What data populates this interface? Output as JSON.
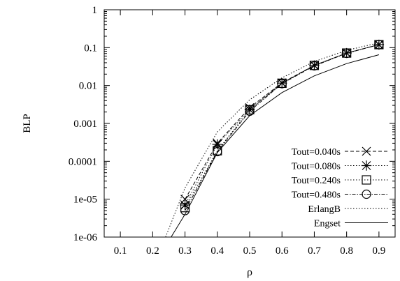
{
  "chart_data": {
    "type": "line",
    "title": "",
    "xlabel": "ρ",
    "ylabel": "BLP",
    "xlim": [
      0.05,
      0.95
    ],
    "ylim": [
      1e-06,
      1
    ],
    "y_scale": "log",
    "grid": false,
    "legend_position": "bottom-right",
    "x_ticks": [
      0.1,
      0.2,
      0.3,
      0.4,
      0.5,
      0.6,
      0.7,
      0.8,
      0.9
    ],
    "x_tick_labels": [
      "0.1",
      "0.2",
      "0.3",
      "0.4",
      "0.5",
      "0.6",
      "0.7",
      "0.8",
      "0.9"
    ],
    "y_ticks": [
      1e-06,
      1e-05,
      0.0001,
      0.001,
      0.01,
      0.1,
      1
    ],
    "y_tick_labels": [
      "1e-06",
      "1e-05",
      "0.0001",
      "0.001",
      "0.01",
      "0.1",
      "1"
    ],
    "series": [
      {
        "name": "Tout=0.040s",
        "marker": "x",
        "dash": "dashed",
        "x": [
          0.3,
          0.4,
          0.5,
          0.6,
          0.7,
          0.8,
          0.9
        ],
        "y": [
          1e-05,
          0.0003,
          0.0026,
          0.0118,
          0.034,
          0.072,
          0.12
        ]
      },
      {
        "name": "Tout=0.080s",
        "marker": "star",
        "dash": "dotted",
        "x": [
          0.3,
          0.4,
          0.5,
          0.6,
          0.7,
          0.8,
          0.9
        ],
        "y": [
          7e-06,
          0.00028,
          0.0023,
          0.0116,
          0.034,
          0.072,
          0.12
        ]
      },
      {
        "name": "Tout=0.240s",
        "marker": "square",
        "dash": "dotted",
        "x": [
          0.3,
          0.4,
          0.5,
          0.6,
          0.7,
          0.8,
          0.9
        ],
        "y": [
          6e-06,
          0.00019,
          0.0023,
          0.0115,
          0.034,
          0.072,
          0.12
        ]
      },
      {
        "name": "Tout=0.480s",
        "marker": "circle",
        "dash": "dashdot",
        "x": [
          0.3,
          0.4,
          0.5,
          0.6,
          0.7,
          0.8,
          0.9
        ],
        "y": [
          5e-06,
          0.00018,
          0.0021,
          0.0112,
          0.033,
          0.071,
          0.12
        ]
      },
      {
        "name": "ErlangB",
        "marker": "none",
        "dash": "dotted",
        "x": [
          0.24,
          0.3,
          0.4,
          0.5,
          0.6,
          0.7,
          0.8,
          0.9
        ],
        "y": [
          1e-06,
          2e-05,
          0.0006,
          0.0042,
          0.016,
          0.043,
          0.085,
          0.135
        ]
      },
      {
        "name": "Engset",
        "marker": "none",
        "dash": "solid",
        "x": [
          0.257,
          0.3,
          0.4,
          0.5,
          0.6,
          0.7,
          0.8,
          0.9
        ],
        "y": [
          1e-06,
          4e-06,
          0.00017,
          0.0016,
          0.0065,
          0.018,
          0.038,
          0.065
        ]
      }
    ]
  }
}
